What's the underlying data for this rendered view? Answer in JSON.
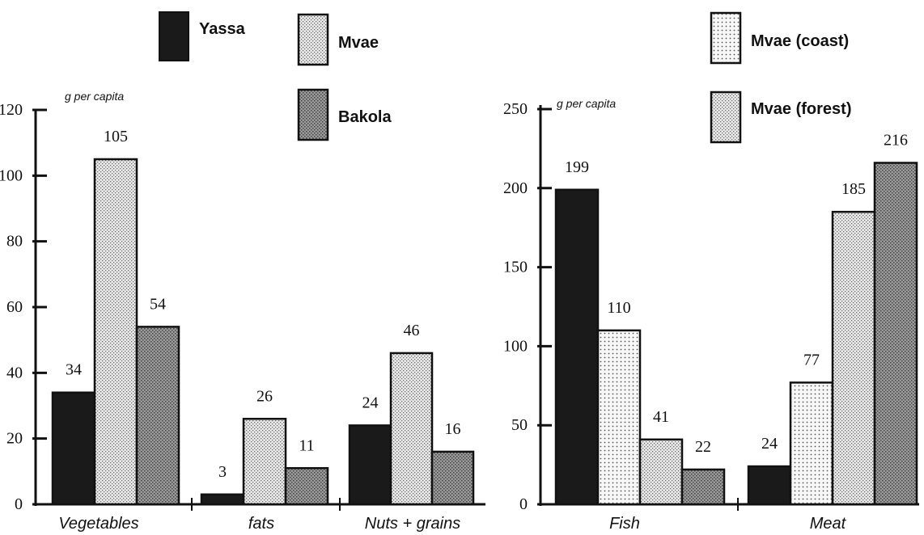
{
  "colors": {
    "Yassa": "#1a1a1a",
    "Mvae": "#d9d9d9",
    "Bakola": "#8c8c8c",
    "Mvae (coast)": "#f4f4f4",
    "Mvae (forest)": "#d9d9d9"
  },
  "chart_data": [
    {
      "type": "bar",
      "ylabel": "g per capita",
      "ylim": [
        0,
        120
      ],
      "yticks": [
        0,
        20,
        40,
        60,
        80,
        100,
        120
      ],
      "categories": [
        "Vegetables",
        "fats",
        "Nuts + grains"
      ],
      "legend": [
        "Yassa",
        "Mvae",
        "Bakola"
      ],
      "series": [
        {
          "name": "Yassa",
          "values": [
            34,
            3,
            24
          ]
        },
        {
          "name": "Mvae",
          "values": [
            105,
            26,
            46
          ]
        },
        {
          "name": "Bakola",
          "values": [
            54,
            11,
            16
          ]
        }
      ],
      "data_labels": [
        [
          "34",
          "105",
          "54"
        ],
        [
          "3",
          "26",
          "11"
        ],
        [
          "24",
          "46",
          "16"
        ]
      ],
      "bar_heights": [
        [
          34,
          105,
          54
        ],
        [
          3,
          26,
          11
        ],
        [
          24,
          46,
          16
        ]
      ]
    },
    {
      "type": "bar",
      "ylabel": "g per capita",
      "ylim": [
        0,
        250
      ],
      "yticks": [
        0,
        50,
        100,
        150,
        200,
        250
      ],
      "categories": [
        "Fish",
        "Meat"
      ],
      "legend": [
        "Mvae (coast)",
        "Mvae (forest)"
      ],
      "series_colors": [
        "Yassa",
        "Mvae (coast)",
        "Mvae (forest)",
        "Bakola"
      ],
      "data_labels": [
        [
          "199",
          "110",
          "41",
          "22"
        ],
        [
          "24",
          "77",
          "185",
          "216"
        ]
      ],
      "bar_heights": [
        [
          199,
          110,
          41,
          22
        ],
        [
          24,
          77,
          185,
          216
        ]
      ]
    }
  ]
}
